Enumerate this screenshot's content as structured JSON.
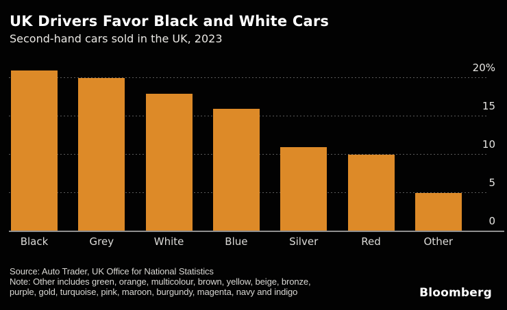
{
  "header": {
    "title": "UK Drivers Favor Black and White Cars",
    "subtitle": "Second-hand cars sold in the UK, 2023"
  },
  "chart_data": {
    "type": "bar",
    "title": "UK Drivers Favor Black and White Cars",
    "subtitle": "Second-hand cars sold in the UK, 2023",
    "categories": [
      "Black",
      "Grey",
      "White",
      "Blue",
      "Silver",
      "Red",
      "Other"
    ],
    "values": [
      21,
      20,
      18,
      16,
      11,
      10,
      5
    ],
    "unit": "%",
    "xlabel": "",
    "ylabel": "",
    "ylim": [
      0,
      20
    ],
    "y_ticks": [
      {
        "label": "20%",
        "value": 20
      },
      {
        "label": "15",
        "value": 15
      },
      {
        "label": "10",
        "value": 10
      },
      {
        "label": "5",
        "value": 5
      },
      {
        "label": "0",
        "value": 0
      }
    ],
    "grid": "horizontal-dotted",
    "legend_position": "none",
    "axis_side": "right",
    "bar_color": "#dd8a28",
    "gridline_color": "#5c5c5c",
    "baseline_color": "#8f8f8f",
    "background_color": "#020202"
  },
  "footer": {
    "source": "Source: Auto Trader, UK Office for National Statistics",
    "note_lines": [
      "Note: Other includes green, orange, multicolour, brown, yellow, beige, bronze,",
      "purple, gold, turquoise, pink, maroon, burgundy, magenta, navy and indigo"
    ],
    "logo": "Bloomberg"
  }
}
